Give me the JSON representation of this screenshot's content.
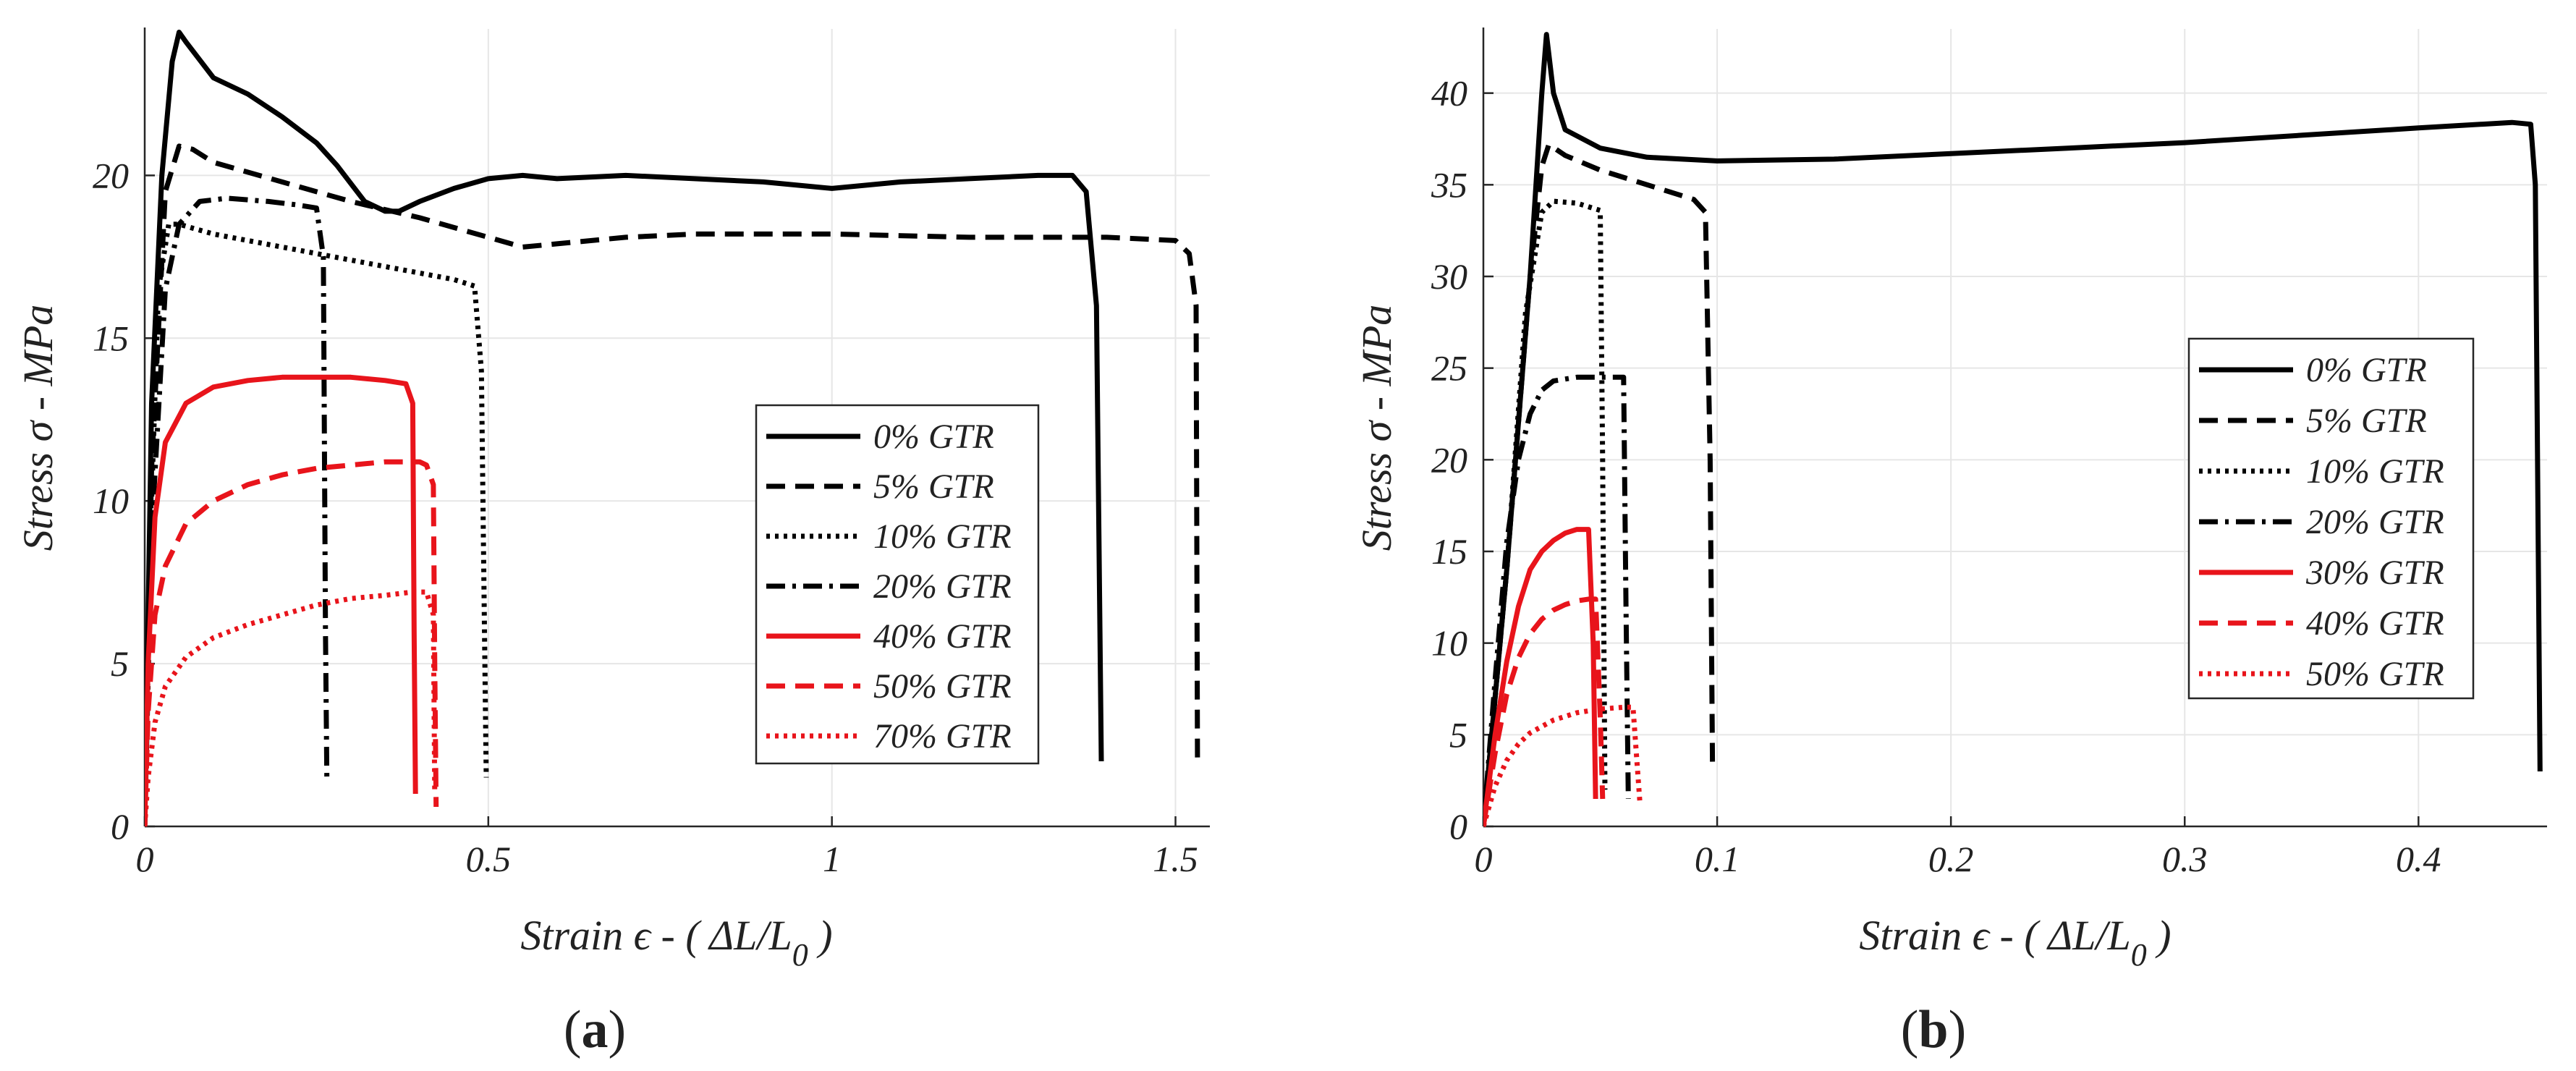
{
  "chart_data": [
    {
      "type": "line",
      "panel_label": "a",
      "xlabel": "Strain ϵ - ( ΔL/L0 )",
      "xlabel_parts": {
        "main": "Strain ϵ - ( ΔL/L",
        "sub": "0",
        "close": " )"
      },
      "ylabel": "Stress σ - MPa",
      "xlim": [
        0,
        1.55
      ],
      "ylim": [
        0,
        24.5
      ],
      "xticks": [
        0,
        0.5,
        1,
        1.5
      ],
      "xtick_labels": [
        "0",
        "0.5",
        "1",
        "1.5"
      ],
      "yticks": [
        0,
        5,
        10,
        15,
        20
      ],
      "ytick_labels": [
        "0",
        "5",
        "10",
        "15",
        "20"
      ],
      "grid": true,
      "legend_position": "center-right",
      "series": [
        {
          "name": "0% GTR",
          "color": "#000000",
          "dash": "solid",
          "x": [
            0,
            0.01,
            0.025,
            0.04,
            0.05,
            0.06,
            0.1,
            0.15,
            0.2,
            0.25,
            0.28,
            0.32,
            0.35,
            0.37,
            0.4,
            0.45,
            0.5,
            0.55,
            0.6,
            0.7,
            0.8,
            0.9,
            1.0,
            1.1,
            1.2,
            1.3,
            1.35,
            1.37,
            1.385,
            1.39,
            1.392
          ],
          "y": [
            0,
            13,
            20,
            23.5,
            24.4,
            24.1,
            23.0,
            22.5,
            21.8,
            21.0,
            20.3,
            19.2,
            18.9,
            18.9,
            19.2,
            19.6,
            19.9,
            20.0,
            19.9,
            20.0,
            19.9,
            19.8,
            19.6,
            19.8,
            19.9,
            20.0,
            20.0,
            19.5,
            16,
            6,
            2
          ]
        },
        {
          "name": "5% GTR",
          "color": "#000000",
          "dash": "dashed",
          "x": [
            0,
            0.01,
            0.03,
            0.05,
            0.07,
            0.1,
            0.2,
            0.3,
            0.4,
            0.5,
            0.55,
            0.6,
            0.7,
            0.8,
            1.0,
            1.2,
            1.4,
            1.5,
            1.52,
            1.53,
            1.532
          ],
          "y": [
            0,
            11,
            19.5,
            20.9,
            20.8,
            20.4,
            19.8,
            19.2,
            18.7,
            18.1,
            17.8,
            17.9,
            18.1,
            18.2,
            18.2,
            18.1,
            18.1,
            18.0,
            17.6,
            16,
            2
          ]
        },
        {
          "name": "10% GTR",
          "color": "#000000",
          "dash": "dotted",
          "x": [
            0,
            0.01,
            0.02,
            0.035,
            0.05,
            0.1,
            0.2,
            0.3,
            0.4,
            0.45,
            0.48,
            0.49,
            0.495,
            0.497
          ],
          "y": [
            0,
            10,
            16.5,
            18.5,
            18.5,
            18.2,
            17.8,
            17.4,
            17.0,
            16.8,
            16.6,
            14,
            5,
            1.5
          ]
        },
        {
          "name": "20% GTR",
          "color": "#000000",
          "dash": "dashdot",
          "x": [
            0,
            0.01,
            0.03,
            0.05,
            0.08,
            0.12,
            0.18,
            0.22,
            0.25,
            0.26,
            0.263,
            0.265
          ],
          "y": [
            0,
            9,
            16.5,
            18.5,
            19.2,
            19.3,
            19.2,
            19.1,
            19.0,
            17.5,
            6,
            1.5
          ]
        },
        {
          "name": "40% GTR",
          "color": "#e8141b",
          "dash": "solid",
          "x": [
            0,
            0.005,
            0.015,
            0.03,
            0.06,
            0.1,
            0.15,
            0.2,
            0.25,
            0.3,
            0.35,
            0.38,
            0.39,
            0.392,
            0.394
          ],
          "y": [
            0,
            5,
            9.5,
            11.8,
            13.0,
            13.5,
            13.7,
            13.8,
            13.8,
            13.8,
            13.7,
            13.6,
            13.0,
            6,
            1
          ]
        },
        {
          "name": "50% GTR",
          "color": "#e8141b",
          "dash": "dashed",
          "x": [
            0,
            0.005,
            0.015,
            0.03,
            0.06,
            0.1,
            0.15,
            0.2,
            0.25,
            0.3,
            0.35,
            0.4,
            0.41,
            0.42,
            0.422,
            0.424
          ],
          "y": [
            0,
            3.5,
            6.5,
            8.0,
            9.3,
            10.0,
            10.5,
            10.8,
            11.0,
            11.1,
            11.2,
            11.2,
            11.1,
            10.5,
            5,
            0.6
          ]
        },
        {
          "name": "70% GTR",
          "color": "#e8141b",
          "dash": "dotted",
          "x": [
            0,
            0.005,
            0.015,
            0.03,
            0.06,
            0.1,
            0.15,
            0.2,
            0.25,
            0.3,
            0.35,
            0.39,
            0.41,
            0.42,
            0.422
          ],
          "y": [
            0,
            1.5,
            3.2,
            4.3,
            5.2,
            5.8,
            6.2,
            6.5,
            6.8,
            7.0,
            7.1,
            7.2,
            7.2,
            6.5,
            1
          ]
        }
      ]
    },
    {
      "type": "line",
      "panel_label": "b",
      "xlabel": "Strain ϵ - ( ΔL/L0 )",
      "xlabel_parts": {
        "main": "Strain ϵ - ( ΔL/L",
        "sub": "0",
        "close": " )"
      },
      "ylabel": "Stress σ - MPa",
      "xlim": [
        0,
        0.455
      ],
      "ylim": [
        0,
        43.5
      ],
      "xticks": [
        0,
        0.1,
        0.2,
        0.3,
        0.4
      ],
      "xtick_labels": [
        "0",
        "0.1",
        "0.2",
        "0.3",
        "0.4"
      ],
      "yticks": [
        0,
        5,
        10,
        15,
        20,
        25,
        30,
        35,
        40
      ],
      "ytick_labels": [
        "0",
        "5",
        "10",
        "15",
        "20",
        "25",
        "30",
        "35",
        "40"
      ],
      "grid": true,
      "legend_position": "center-right",
      "series": [
        {
          "name": "0% GTR",
          "color": "#000000",
          "dash": "solid",
          "x": [
            0,
            0.01,
            0.02,
            0.025,
            0.027,
            0.03,
            0.035,
            0.05,
            0.07,
            0.1,
            0.15,
            0.2,
            0.25,
            0.3,
            0.35,
            0.4,
            0.44,
            0.448,
            0.45,
            0.452
          ],
          "y": [
            0,
            14,
            30,
            40,
            43.2,
            40,
            38,
            37,
            36.5,
            36.3,
            36.4,
            36.7,
            37,
            37.3,
            37.7,
            38.1,
            38.4,
            38.3,
            35,
            3
          ]
        },
        {
          "name": "5% GTR",
          "color": "#000000",
          "dash": "dashed",
          "x": [
            0,
            0.01,
            0.02,
            0.025,
            0.028,
            0.035,
            0.05,
            0.07,
            0.09,
            0.095,
            0.097,
            0.098
          ],
          "y": [
            0,
            14,
            30,
            36,
            37.2,
            36.6,
            35.8,
            35.0,
            34.2,
            33.5,
            20,
            3.5
          ]
        },
        {
          "name": "10% GTR",
          "color": "#000000",
          "dash": "dotted",
          "x": [
            0,
            0.01,
            0.018,
            0.025,
            0.03,
            0.04,
            0.05,
            0.051,
            0.052
          ],
          "y": [
            0,
            14,
            28,
            33.5,
            34.1,
            34.0,
            33.6,
            20,
            2
          ]
        },
        {
          "name": "20% GTR",
          "color": "#000000",
          "dash": "dashdot",
          "x": [
            0,
            0.005,
            0.01,
            0.015,
            0.02,
            0.025,
            0.03,
            0.04,
            0.05,
            0.06,
            0.061,
            0.062
          ],
          "y": [
            0,
            8,
            15.5,
            20,
            22.5,
            23.8,
            24.3,
            24.5,
            24.5,
            24.5,
            12,
            1.5
          ]
        },
        {
          "name": "30% GTR",
          "color": "#e8141b",
          "dash": "solid",
          "x": [
            0,
            0.005,
            0.01,
            0.015,
            0.02,
            0.025,
            0.03,
            0.035,
            0.04,
            0.045,
            0.047,
            0.048
          ],
          "y": [
            0,
            5,
            9,
            12,
            14,
            15,
            15.6,
            16,
            16.2,
            16.2,
            10,
            1.5
          ]
        },
        {
          "name": "40% GTR",
          "color": "#e8141b",
          "dash": "dashed",
          "x": [
            0,
            0.005,
            0.01,
            0.015,
            0.02,
            0.025,
            0.03,
            0.035,
            0.04,
            0.045,
            0.048,
            0.05,
            0.051
          ],
          "y": [
            0,
            4,
            7.2,
            9.2,
            10.5,
            11.3,
            11.8,
            12.1,
            12.3,
            12.4,
            12.4,
            6,
            1.5
          ]
        },
        {
          "name": "50% GTR",
          "color": "#e8141b",
          "dash": "dotted",
          "x": [
            0,
            0.005,
            0.01,
            0.015,
            0.02,
            0.03,
            0.04,
            0.05,
            0.06,
            0.064,
            0.066,
            0.067
          ],
          "y": [
            0,
            2.2,
            3.6,
            4.5,
            5.1,
            5.8,
            6.2,
            6.4,
            6.5,
            6.5,
            3,
            1.2
          ]
        }
      ]
    }
  ]
}
